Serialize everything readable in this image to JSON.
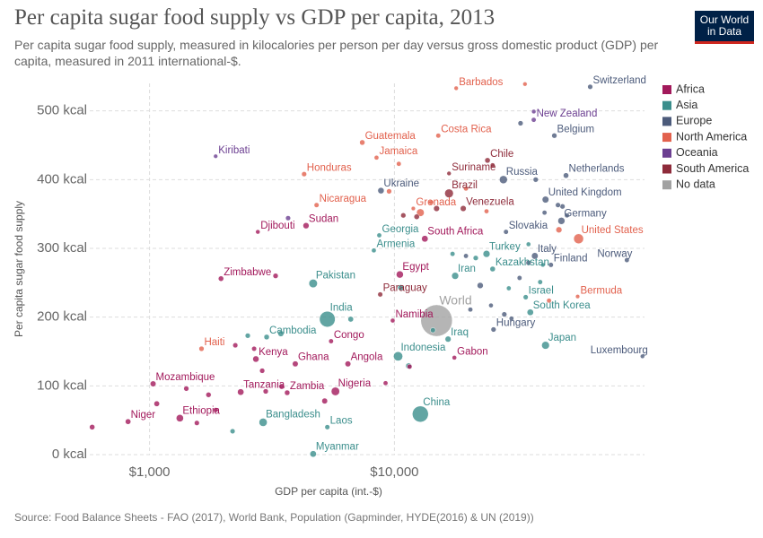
{
  "header": {
    "title": "Per capita sugar food supply vs GDP per capita, 2013",
    "subtitle": "Per capita sugar food supply, measured in kilocalories per person per day versus gross domestic product (GDP) per capita, measured in 2011 international-$.",
    "logo": [
      "Our World",
      "in Data"
    ]
  },
  "source": "Source: Food Balance Sheets - FAO (2017), World Bank, Population (Gapminder, HYDE(2016) & UN (2019))",
  "chart_data": {
    "type": "scatter",
    "x_label": "GDP per capita (int.-$)",
    "y_label": "Per capita sugar food supply",
    "xscale": "log",
    "grid": true,
    "legend": "right",
    "xlim": [
      570,
      105000
    ],
    "xticks": [
      {
        "value": 1000,
        "label": "$1,000"
      },
      {
        "value": 10000,
        "label": "$10,000"
      }
    ],
    "ylim": [
      0,
      540
    ],
    "yticks": [
      {
        "value": 0,
        "label": "0 kcal"
      },
      {
        "value": 100,
        "label": "100 kcal"
      },
      {
        "value": 200,
        "label": "200 kcal"
      },
      {
        "value": 300,
        "label": "300 kcal"
      },
      {
        "value": 400,
        "label": "400 kcal"
      },
      {
        "value": 500,
        "label": "500 kcal"
      }
    ],
    "series": [
      {
        "name": "Africa",
        "color": "#a2195b",
        "labels": [
          "Niger",
          "Ethiopia",
          "Mozambique",
          "Zimbabwe",
          "Djibouti",
          "Sudan",
          "Kenya",
          "Tanzania",
          "Zambia",
          "Nigeria",
          "Ghana",
          "Angola",
          "Congo",
          "Namibia",
          "Egypt",
          "South Africa",
          "Gabon",
          null,
          null,
          null,
          null,
          null,
          null,
          null,
          null,
          null,
          null,
          null,
          null,
          null,
          null,
          null
        ],
        "x": [
          817,
          1330,
          1034,
          1958,
          2768,
          4355,
          2718,
          2356,
          3648,
          5741,
          3937,
          6457,
          5512,
          9838,
          10520,
          13310,
          17570,
          583,
          1070,
          1413,
          1560,
          1741,
          1862,
          2240,
          2884,
          2673,
          2981,
          3467,
          5190,
          3271,
          9200,
          11530
        ],
        "values": [
          48,
          53,
          103,
          256,
          324,
          333,
          139,
          91,
          90,
          92,
          132,
          132,
          165,
          195,
          262,
          314,
          141,
          40,
          74,
          96,
          46,
          87,
          65,
          159,
          122,
          154,
          92,
          99,
          78,
          260,
          104,
          128
        ],
        "sizes": [
          19,
          95,
          26,
          14,
          1,
          37,
          45,
          50,
          15,
          172,
          26,
          26,
          4.5,
          2.3,
          88,
          53,
          1.7,
          15,
          20,
          10,
          8,
          12,
          5,
          8,
          10,
          6,
          11,
          17,
          25,
          12,
          3,
          6
        ]
      },
      {
        "name": "Asia",
        "color": "#3b8e8c",
        "labels": [
          "Pakistan",
          "India",
          "Cambodia",
          "Bangladesh",
          "Laos",
          "Myanmar",
          "China",
          "Indonesia",
          "Iraq",
          "Iran",
          "Turkey",
          "Kazakhstan",
          "Georgia",
          "Armenia",
          "Israel",
          "South Korea",
          "Japan",
          null,
          null,
          null,
          null,
          null,
          null,
          null,
          null,
          null,
          null,
          null,
          null,
          null
        ],
        "x": [
          4657,
          5321,
          3007,
          2909,
          5321,
          4657,
          12760,
          10350,
          16560,
          17700,
          23770,
          25180,
          8670,
          8240,
          34360,
          35880,
          41400,
          2518,
          3437,
          6630,
          11430,
          14360,
          10610,
          17270,
          21480,
          29310,
          39370,
          35270,
          40360,
          2183
        ],
        "values": [
          249,
          197,
          171,
          47,
          40,
          1,
          59,
          143,
          168,
          260,
          292,
          270,
          319,
          297,
          229,
          207,
          159,
          173,
          176,
          197,
          129,
          181,
          243,
          292,
          286,
          242,
          251,
          306,
          276,
          34
        ],
        "sizes": [
          182,
          1280,
          15,
          157,
          6.8,
          52,
          1360,
          251,
          34,
          77,
          76,
          17,
          3.7,
          2.9,
          8,
          50,
          127,
          10,
          30,
          20,
          30,
          9,
          28,
          5,
          10,
          3,
          5,
          2,
          1,
          8
        ]
      },
      {
        "name": "Europe",
        "color": "#4c5b7b",
        "labels": [
          "Switzerland",
          "Belgium",
          "Russia",
          "Netherlands",
          "Ukraine",
          "United Kingdom",
          "Germany",
          "Slovakia",
          "Italy",
          "Finland",
          "Norway",
          "Hungary",
          "Luxembourg",
          null,
          null,
          null,
          null,
          null,
          null,
          null,
          null,
          null,
          null,
          null,
          null,
          null,
          null
        ],
        "x": [
          63000,
          44980,
          27860,
          50190,
          8810,
          41400,
          48060,
          28550,
          37440,
          43560,
          88950,
          25390,
          103000,
          32730,
          37760,
          46540,
          48560,
          41020,
          50630,
          35270,
          32430,
          30060,
          28100,
          24790,
          22400,
          19590,
          20420
        ],
        "values": [
          535,
          464,
          400,
          406,
          384,
          371,
          340,
          324,
          289,
          276,
          283,
          182,
          143,
          482,
          400,
          363,
          361,
          352,
          348,
          279,
          257,
          198,
          204,
          217,
          246,
          289,
          211
        ],
        "sizes": [
          8,
          11,
          144,
          17,
          45,
          64,
          81,
          5.4,
          60,
          5.4,
          5,
          9.9,
          0.5,
          10,
          10,
          8,
          10,
          4,
          5,
          10,
          5,
          3,
          10,
          2,
          38,
          4,
          4
        ]
      },
      {
        "name": "North America",
        "color": "#e2614d",
        "labels": [
          "Barbados",
          "Costa Rica",
          "Guatemala",
          "Jamaica",
          "Honduras",
          "Nicaragua",
          "Grenada",
          "Haiti",
          "United States",
          "Bermuda",
          null,
          null,
          null,
          null,
          null,
          null,
          null,
          null,
          null
        ],
        "x": [
          17870,
          15100,
          7390,
          8450,
          4278,
          4809,
          11940,
          1630,
          56500,
          56000,
          10420,
          19590,
          23770,
          12760,
          42780,
          46960,
          34120,
          9510,
          14120
        ],
        "values": [
          533,
          464,
          454,
          432,
          408,
          363,
          358,
          154,
          314,
          230,
          423,
          387,
          354,
          352,
          224,
          327,
          539,
          383,
          367
        ],
        "sizes": [
          0.3,
          4.8,
          15,
          2.7,
          8,
          6,
          0.1,
          10,
          316,
          0.06,
          4,
          4,
          3,
          120,
          4,
          35,
          0.3,
          10,
          8
        ]
      },
      {
        "name": "Oceania",
        "color": "#6c3f91",
        "labels": [
          "Kiribati",
          "New Zealand",
          null,
          null
        ],
        "x": [
          1862,
          37050,
          37070,
          3679
        ],
        "values": [
          434,
          487,
          499,
          344
        ],
        "sizes": [
          0.1,
          4.5,
          0.8,
          7
        ]
      },
      {
        "name": "South America",
        "color": "#8e2b3a",
        "labels": [
          "Chile",
          "Suriname",
          "Brazil",
          "Venezuela",
          "Paraguay",
          null,
          null,
          null,
          null
        ],
        "x": [
          23990,
          16710,
          16710,
          19100,
          8750,
          25180,
          10870,
          12330,
          14860
        ],
        "values": [
          428,
          409,
          380,
          358,
          233,
          421,
          348,
          346,
          358
        ],
        "sizes": [
          17.5,
          0.5,
          200,
          30,
          6.6,
          3.4,
          10,
          16,
          30
        ]
      },
      {
        "name": "No data",
        "color": "#a2a2a2",
        "labels": [
          "World"
        ],
        "x": [
          14860
        ],
        "values": [
          195
        ],
        "sizes": [
          7200
        ]
      }
    ]
  }
}
